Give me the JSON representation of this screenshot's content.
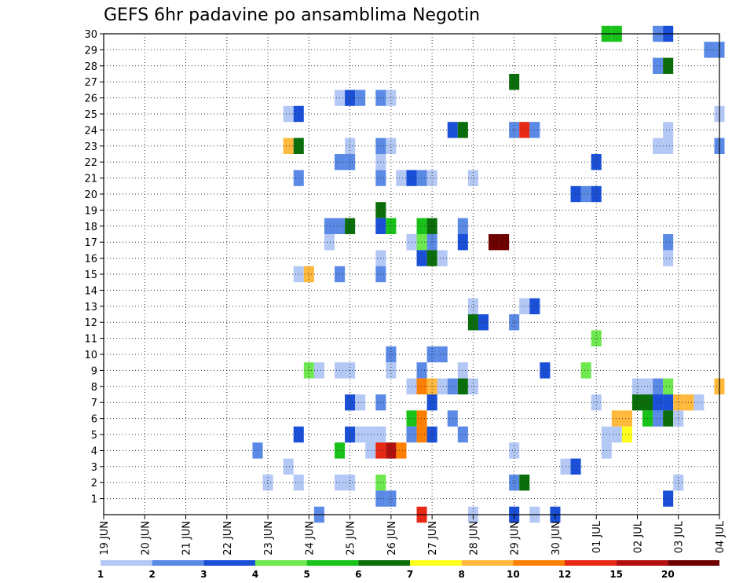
{
  "chart_data": {
    "type": "heatmap",
    "title": "GEFS 6hr padavine po ansamblima Negotin",
    "x_unit": "6h step (0 = 19 JUN 00z)",
    "x_tick_labels": [
      "19 JUN",
      "20 JUN",
      "21 JUN",
      "22 JUN",
      "23 JUN",
      "24 JUN",
      "25 JUN",
      "26 JUN",
      "27 JUN",
      "28 JUN",
      "29 JUN",
      "30 JUN",
      "01 JUL",
      "02 JUL",
      "03 JUL",
      "04 JUL"
    ],
    "x_tick_steps": [
      0,
      4,
      8,
      12,
      16,
      20,
      24,
      28,
      32,
      36,
      40,
      44,
      48,
      52,
      56,
      60
    ],
    "xlim": [
      0,
      60
    ],
    "y_tick_labels": [
      "1",
      "2",
      "3",
      "4",
      "5",
      "6",
      "7",
      "8",
      "9",
      "10",
      "11",
      "12",
      "13",
      "14",
      "15",
      "16",
      "17",
      "18",
      "19",
      "20",
      "21",
      "22",
      "23",
      "24",
      "25",
      "26",
      "27",
      "28",
      "29",
      "30"
    ],
    "ylim": [
      0,
      30
    ],
    "grid": true,
    "colorbar": {
      "labels": [
        "1",
        "2",
        "3",
        "4",
        "5",
        "6",
        "7",
        "8",
        "10",
        "12",
        "15",
        "20"
      ],
      "colors": [
        "#b4c8f5",
        "#5a8ae6",
        "#1a4fd8",
        "#6de84f",
        "#19c219",
        "#0a6e0a",
        "#ffff1e",
        "#ffb93c",
        "#ff7f00",
        "#e62814",
        "#b40f0f",
        "#6e0000"
      ]
    },
    "cells": [
      [
        54,
        30,
        1
      ],
      [
        55,
        30,
        2
      ],
      [
        49,
        30,
        4
      ],
      [
        50,
        30,
        4
      ],
      [
        59,
        29,
        1
      ],
      [
        60,
        29,
        1
      ],
      [
        54,
        28,
        1
      ],
      [
        55,
        28,
        5
      ],
      [
        40,
        27,
        5
      ],
      [
        23,
        26,
        0
      ],
      [
        24,
        26,
        2
      ],
      [
        25,
        26,
        1
      ],
      [
        27,
        26,
        1
      ],
      [
        28,
        26,
        0
      ],
      [
        18,
        25,
        0
      ],
      [
        19,
        25,
        2
      ],
      [
        60,
        25,
        0
      ],
      [
        34,
        24,
        2
      ],
      [
        35,
        24,
        5
      ],
      [
        40,
        24,
        1
      ],
      [
        41,
        24,
        9
      ],
      [
        42,
        24,
        1
      ],
      [
        55,
        24,
        0
      ],
      [
        18,
        23,
        7
      ],
      [
        19,
        23,
        5
      ],
      [
        24,
        23,
        0
      ],
      [
        27,
        23,
        1
      ],
      [
        28,
        23,
        0
      ],
      [
        54,
        23,
        0
      ],
      [
        55,
        23,
        0
      ],
      [
        60,
        23,
        1
      ],
      [
        23,
        22,
        1
      ],
      [
        24,
        22,
        1
      ],
      [
        27,
        22,
        0
      ],
      [
        48,
        22,
        2
      ],
      [
        19,
        21,
        1
      ],
      [
        27,
        21,
        1
      ],
      [
        29,
        21,
        0
      ],
      [
        30,
        21,
        2
      ],
      [
        31,
        21,
        1
      ],
      [
        32,
        21,
        0
      ],
      [
        36,
        21,
        0
      ],
      [
        46,
        20,
        2
      ],
      [
        47,
        20,
        1
      ],
      [
        48,
        20,
        2
      ],
      [
        27,
        19,
        5
      ],
      [
        22,
        18,
        1
      ],
      [
        23,
        18,
        1
      ],
      [
        24,
        18,
        5
      ],
      [
        27,
        18,
        2
      ],
      [
        28,
        18,
        4
      ],
      [
        31,
        18,
        4
      ],
      [
        32,
        18,
        5
      ],
      [
        35,
        18,
        1
      ],
      [
        22,
        17,
        0
      ],
      [
        30,
        17,
        0
      ],
      [
        31,
        17,
        3
      ],
      [
        32,
        17,
        1
      ],
      [
        35,
        17,
        2
      ],
      [
        38,
        17,
        11
      ],
      [
        39,
        17,
        11
      ],
      [
        55,
        17,
        1
      ],
      [
        31,
        16,
        2
      ],
      [
        32,
        16,
        5
      ],
      [
        33,
        16,
        0
      ],
      [
        27,
        16,
        0
      ],
      [
        55,
        16,
        0
      ],
      [
        19,
        15,
        0
      ],
      [
        20,
        15,
        7
      ],
      [
        23,
        15,
        1
      ],
      [
        27,
        15,
        1
      ],
      [
        36,
        13,
        0
      ],
      [
        41,
        13,
        0
      ],
      [
        42,
        13,
        2
      ],
      [
        36,
        12,
        5
      ],
      [
        37,
        12,
        2
      ],
      [
        40,
        12,
        1
      ],
      [
        48,
        11,
        3
      ],
      [
        28,
        10,
        1
      ],
      [
        32,
        10,
        1
      ],
      [
        33,
        10,
        1
      ],
      [
        20,
        9,
        3
      ],
      [
        21,
        9,
        0
      ],
      [
        23,
        9,
        0
      ],
      [
        24,
        9,
        0
      ],
      [
        28,
        9,
        0
      ],
      [
        31,
        9,
        1
      ],
      [
        35,
        9,
        0
      ],
      [
        43,
        9,
        2
      ],
      [
        47,
        9,
        3
      ],
      [
        30,
        8,
        0
      ],
      [
        31,
        8,
        8
      ],
      [
        32,
        8,
        7
      ],
      [
        33,
        8,
        0
      ],
      [
        34,
        8,
        1
      ],
      [
        35,
        8,
        5
      ],
      [
        36,
        8,
        0
      ],
      [
        52,
        8,
        0
      ],
      [
        53,
        8,
        0
      ],
      [
        54,
        8,
        1
      ],
      [
        55,
        8,
        3
      ],
      [
        60,
        8,
        7
      ],
      [
        24,
        7,
        2
      ],
      [
        25,
        7,
        0
      ],
      [
        27,
        7,
        1
      ],
      [
        32,
        7,
        2
      ],
      [
        48,
        7,
        0
      ],
      [
        52,
        7,
        5
      ],
      [
        53,
        7,
        5
      ],
      [
        54,
        7,
        2
      ],
      [
        55,
        7,
        2
      ],
      [
        56,
        7,
        7
      ],
      [
        57,
        7,
        7
      ],
      [
        58,
        7,
        0
      ],
      [
        30,
        6,
        4
      ],
      [
        31,
        6,
        8
      ],
      [
        34,
        6,
        1
      ],
      [
        50,
        6,
        7
      ],
      [
        51,
        6,
        7
      ],
      [
        53,
        6,
        4
      ],
      [
        54,
        6,
        1
      ],
      [
        55,
        6,
        5
      ],
      [
        56,
        6,
        0
      ],
      [
        19,
        5,
        2
      ],
      [
        24,
        5,
        2
      ],
      [
        25,
        5,
        0
      ],
      [
        26,
        5,
        0
      ],
      [
        27,
        5,
        0
      ],
      [
        30,
        5,
        1
      ],
      [
        31,
        5,
        8
      ],
      [
        32,
        5,
        2
      ],
      [
        35,
        5,
        1
      ],
      [
        49,
        5,
        0
      ],
      [
        50,
        5,
        0
      ],
      [
        51,
        5,
        6
      ],
      [
        15,
        4,
        1
      ],
      [
        23,
        4,
        4
      ],
      [
        26,
        4,
        0
      ],
      [
        27,
        4,
        9
      ],
      [
        28,
        4,
        10
      ],
      [
        29,
        4,
        8
      ],
      [
        40,
        4,
        0
      ],
      [
        49,
        4,
        0
      ],
      [
        18,
        3,
        0
      ],
      [
        45,
        3,
        0
      ],
      [
        46,
        3,
        2
      ],
      [
        16,
        2,
        0
      ],
      [
        19,
        2,
        0
      ],
      [
        23,
        2,
        0
      ],
      [
        24,
        2,
        0
      ],
      [
        27,
        2,
        3
      ],
      [
        40,
        2,
        1
      ],
      [
        41,
        2,
        5
      ],
      [
        56,
        2,
        0
      ],
      [
        27,
        1,
        1
      ],
      [
        28,
        1,
        1
      ],
      [
        55,
        1,
        2
      ],
      [
        21,
        0,
        1
      ],
      [
        31,
        0,
        9
      ],
      [
        36,
        0,
        0
      ],
      [
        40,
        0,
        2
      ],
      [
        42,
        0,
        0
      ],
      [
        44,
        0,
        2
      ]
    ]
  }
}
